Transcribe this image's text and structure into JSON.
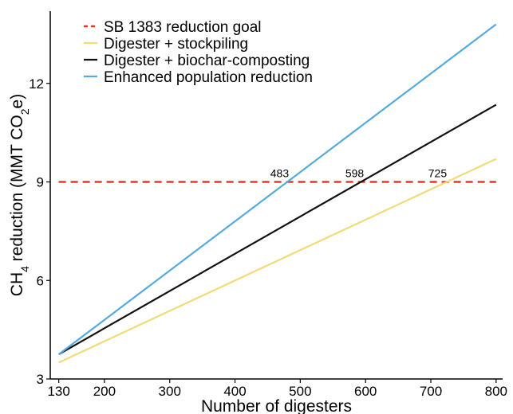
{
  "chart_data": {
    "type": "line",
    "title": "",
    "xlabel": "Number of digesters",
    "ylabel": {
      "prefix": "CH",
      "sub1": "4",
      "middle": " reduction (MMT CO",
      "sub2": "2",
      "suffix": "e)"
    },
    "xlim": [
      117,
      810
    ],
    "ylim": [
      3,
      14.2
    ],
    "x_ticks": [
      130,
      200,
      300,
      400,
      500,
      600,
      700,
      800
    ],
    "y_ticks": [
      3,
      6,
      9,
      12
    ],
    "grid": false,
    "legend_position": "top-left",
    "series": [
      {
        "name": "SB 1383 reduction goal",
        "color": "#e8372a",
        "dash": true,
        "x": [
          130,
          800
        ],
        "y": [
          9,
          9
        ]
      },
      {
        "name": "Digester + stockpiling",
        "color": "#f2dc7a",
        "dash": false,
        "x": [
          130,
          800
        ],
        "y": [
          3.5,
          9.7
        ]
      },
      {
        "name": "Digester + biochar-composting",
        "color": "#111111",
        "dash": false,
        "x": [
          130,
          800
        ],
        "y": [
          3.75,
          11.35
        ]
      },
      {
        "name": "Enhanced population reduction",
        "color": "#55aae0",
        "dash": false,
        "x": [
          130,
          800
        ],
        "y": [
          3.75,
          13.8
        ]
      }
    ],
    "annotations": [
      {
        "text": "483",
        "x": 483,
        "y": 9
      },
      {
        "text": "598",
        "x": 598,
        "y": 9
      },
      {
        "text": "725",
        "x": 725,
        "y": 9
      }
    ]
  }
}
